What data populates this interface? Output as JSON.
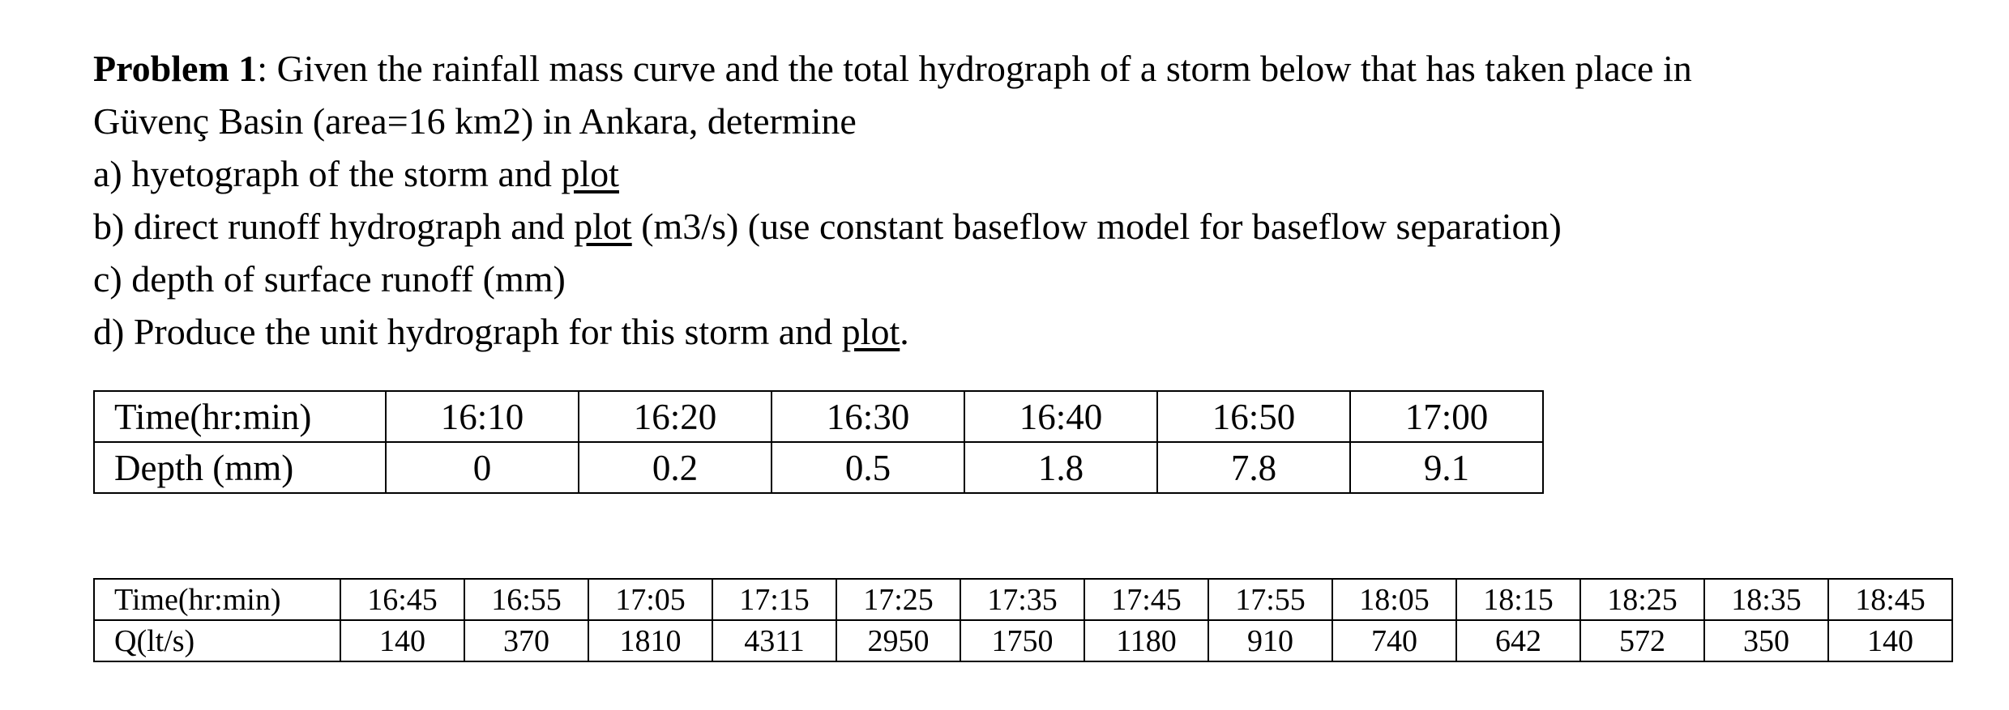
{
  "problem": {
    "label": "Problem 1",
    "intro": ": Given the rainfall mass curve and the total hydrograph of a storm below that has taken place in",
    "intro2": "Güvenç Basin (area=16 km2) in Ankara, determine",
    "items": [
      {
        "before": "a) hyetograph of the storm and ",
        "underlined": "plot"
      },
      {
        "before": "b) direct runoff hydrograph and ",
        "underlined": "plot",
        "after": " (m3/s) (use constant baseflow model for baseflow separation)"
      },
      {
        "before": "c) depth of surface runoff (mm)"
      },
      {
        "before": "d) Produce the unit hydrograph for this storm and ",
        "underlined": "plot",
        "after": "."
      }
    ]
  },
  "rainfall_table": {
    "rows": [
      [
        "Time(hr:min)",
        "16:10",
        "16:20",
        "16:30",
        "16:40",
        "16:50",
        "17:00"
      ],
      [
        "Depth (mm)",
        "0",
        "0.2",
        "0.5",
        "1.8",
        "7.8",
        "9.1"
      ]
    ]
  },
  "hydrograph_table": {
    "rows": [
      [
        "Time(hr:min)",
        "16:45",
        "16:55",
        "17:05",
        "17:15",
        "17:25",
        "17:35",
        "17:45",
        "17:55",
        "18:05",
        "18:15",
        "18:25",
        "18:35",
        "18:45"
      ],
      [
        "Q(lt/s)",
        "140",
        "370",
        "1810",
        "4311",
        "2950",
        "1750",
        "1180",
        "910",
        "740",
        "642",
        "572",
        "350",
        "140"
      ]
    ]
  }
}
